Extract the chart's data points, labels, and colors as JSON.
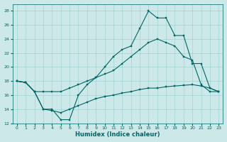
{
  "background_color": "#cce8e8",
  "grid_color": "#99cccc",
  "line_color": "#006666",
  "xlabel": "Humidex (Indice chaleur)",
  "xlim": [
    -0.5,
    23.5
  ],
  "ylim": [
    12,
    29
  ],
  "yticks": [
    12,
    14,
    16,
    18,
    20,
    22,
    24,
    26,
    28
  ],
  "xticks": [
    0,
    1,
    2,
    3,
    4,
    5,
    6,
    7,
    8,
    9,
    10,
    11,
    12,
    13,
    14,
    15,
    16,
    17,
    18,
    19,
    20,
    21,
    22,
    23
  ],
  "line1_x": [
    0,
    1,
    2,
    3,
    4,
    5,
    6,
    7,
    8,
    9,
    10,
    11,
    12,
    13,
    14,
    15,
    16,
    17,
    18,
    19,
    20,
    21,
    22,
    23
  ],
  "line1_y": [
    18,
    17.8,
    16.5,
    14.0,
    14.0,
    12.5,
    12.5,
    16.0,
    17.5,
    18.5,
    20.0,
    21.5,
    22.5,
    23.0,
    25.5,
    28.0,
    27.0,
    27.0,
    24.5,
    24.5,
    20.5,
    20.5,
    17.0,
    16.5
  ],
  "line2_x": [
    0,
    1,
    2,
    3,
    4,
    5,
    6,
    7,
    8,
    9,
    10,
    11,
    12,
    13,
    14,
    15,
    16,
    17,
    18,
    19,
    20,
    21,
    22,
    23
  ],
  "line2_y": [
    18,
    17.8,
    16.5,
    16.5,
    16.5,
    16.5,
    17.0,
    17.5,
    18.0,
    18.5,
    19.0,
    19.5,
    20.5,
    21.5,
    22.5,
    23.5,
    24.0,
    23.5,
    23.0,
    21.5,
    21.0,
    17.5,
    16.5,
    16.5
  ],
  "line3_x": [
    0,
    1,
    2,
    3,
    4,
    5,
    6,
    7,
    8,
    9,
    10,
    11,
    12,
    13,
    14,
    15,
    16,
    17,
    18,
    19,
    20,
    21,
    22,
    23
  ],
  "line3_y": [
    18,
    17.8,
    16.5,
    14.0,
    13.8,
    13.5,
    14.0,
    14.5,
    15.0,
    15.5,
    15.8,
    16.0,
    16.3,
    16.5,
    16.8,
    17.0,
    17.0,
    17.2,
    17.3,
    17.4,
    17.5,
    17.3,
    17.0,
    16.5
  ],
  "marker_size": 2.0,
  "line_width": 0.8,
  "tick_fontsize": 4.5,
  "xlabel_fontsize": 6
}
